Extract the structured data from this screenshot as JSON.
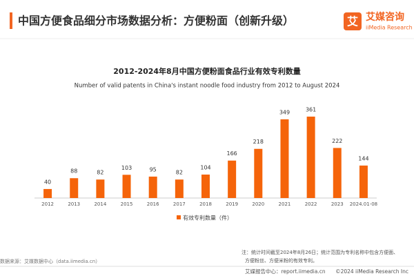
{
  "header": {
    "title": "中国方便食品细分市场数据分析：方便粉面（创新升级）"
  },
  "logo": {
    "name": "艾媒咨询",
    "sub": "iiMedia Research",
    "icon": "艾"
  },
  "chart_data": {
    "type": "bar",
    "title": "2012-2024年8月中国方便粉面食品行业有效专利数量",
    "subtitle": "Number of valid patents in China's instant noodle food industry from 2012 to August 2024",
    "categories": [
      "2012",
      "2013",
      "2014",
      "2015",
      "2016",
      "2017",
      "2018",
      "2019",
      "2020",
      "2021",
      "2022",
      "2023",
      "2024.01-08"
    ],
    "series": [
      {
        "name": "有效专利数量（件）",
        "color": "#f5640a",
        "values": [
          40,
          88,
          82,
          103,
          95,
          82,
          104,
          166,
          218,
          349,
          361,
          222,
          144
        ]
      }
    ]
  },
  "source": "数据来源：艾媒数据中心（data.iimedia.cn）",
  "note": [
    "注：统计时间截至2024年8月26日；统计范围为专利名称中包含方便面、",
    "方便粉丝、方便米粉的有效专利。"
  ],
  "footer": {
    "center": "艾媒报告中心：report.iimedia.cn",
    "right": "©2024  iiMedia Research Inc"
  }
}
